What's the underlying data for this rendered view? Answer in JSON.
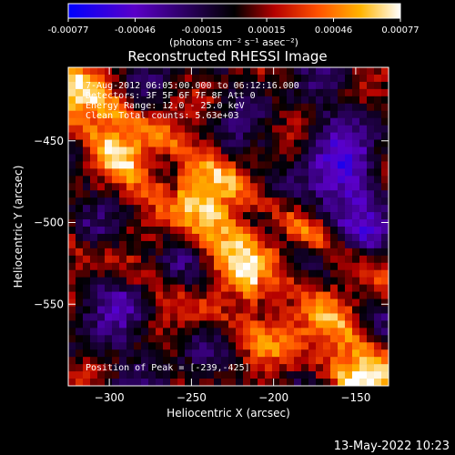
{
  "colorbar": {
    "ticks": [
      "-0.00077",
      "-0.00046",
      "-0.00015",
      "0.00015",
      "0.00046",
      "0.00077"
    ],
    "units": "(photons cm⁻² s⁻¹ asec⁻²)",
    "range": [
      -0.00077,
      0.00077
    ]
  },
  "chart_data": {
    "type": "heatmap",
    "title": "Reconstructed RHESSI Image",
    "xlabel": "Heliocentric X (arcsec)",
    "ylabel": "Heliocentric Y (arcsec)",
    "xlim": [
      -325,
      -130
    ],
    "ylim": [
      -600,
      -405
    ],
    "x_ticks": [
      -300,
      -250,
      -200,
      -150
    ],
    "y_ticks": [
      -450,
      -500,
      -550
    ],
    "x_tick_labels": [
      "−300",
      "−250",
      "−200",
      "−150"
    ],
    "y_tick_labels": [
      "−450",
      "−500",
      "−550"
    ],
    "peak_position": [
      -239,
      -425
    ],
    "total_counts": "5.63e+03",
    "energy_range_kev": [
      12.0,
      25.0
    ],
    "annotations": [
      "7-Aug-2012 06:05:00.000 to 06:12:16.000",
      "Detectors: 3F 5F 6F 7F 8F  Att 0",
      "Energy Range: 12.0 - 25.0 keV",
      "Clean     Total counts: 5.63e+03",
      "Position of Peak = [-239,-425]"
    ],
    "colormap": [
      "#0000ff",
      "#5a00c8",
      "#000000",
      "#b40000",
      "#ff5000",
      "#ffb400",
      "#ffffff"
    ]
  },
  "footer": {
    "date": "13-May-2022 10:23"
  }
}
